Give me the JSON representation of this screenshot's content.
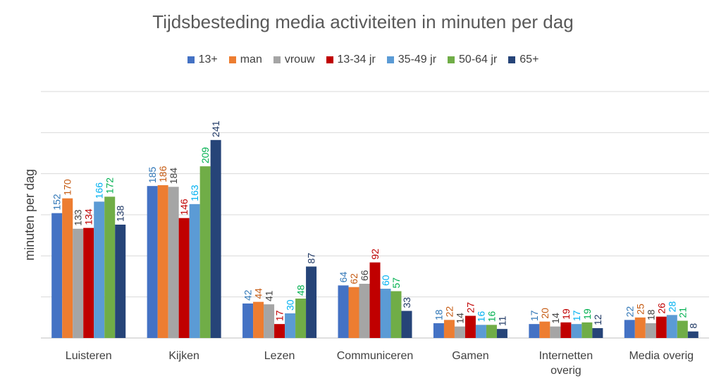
{
  "chart_data": {
    "type": "bar",
    "title": "Tijdsbesteding media activiteiten in minuten per dag",
    "ylabel": "minuten per dag",
    "xlabel": "",
    "ylim": [
      0,
      300
    ],
    "grid": true,
    "legend_position": "top",
    "categories": [
      "Luisteren",
      "Kijken",
      "Lezen",
      "Communiceren",
      "Gamen",
      "Internetten overig",
      "Media overig"
    ],
    "category_lines": [
      [
        "Luisteren"
      ],
      [
        "Kijken"
      ],
      [
        "Lezen"
      ],
      [
        "Communiceren"
      ],
      [
        "Gamen"
      ],
      [
        "Internetten",
        "overig"
      ],
      [
        "Media overig"
      ]
    ],
    "series": [
      {
        "name": "13+",
        "color": "#4472C4",
        "label_color": "#2E75B6",
        "values": [
          152,
          185,
          42,
          64,
          18,
          17,
          22
        ]
      },
      {
        "name": "man",
        "color": "#ED7D31",
        "label_color": "#C55A11",
        "values": [
          170,
          186,
          44,
          62,
          22,
          20,
          25
        ]
      },
      {
        "name": "vrouw",
        "color": "#A5A5A5",
        "label_color": "#404040",
        "values": [
          133,
          184,
          41,
          66,
          14,
          14,
          18
        ]
      },
      {
        "name": "13-34 jr",
        "color": "#C00000",
        "label_color": "#C00000",
        "values": [
          134,
          146,
          17,
          92,
          27,
          19,
          26
        ]
      },
      {
        "name": "35-49 jr",
        "color": "#5B9BD5",
        "label_color": "#00B0F0",
        "values": [
          166,
          163,
          30,
          60,
          16,
          17,
          28
        ]
      },
      {
        "name": "50-64 jr",
        "color": "#70AD47",
        "label_color": "#00B050",
        "values": [
          172,
          209,
          48,
          57,
          16,
          19,
          21
        ]
      },
      {
        "name": "65+",
        "color": "#264478",
        "label_color": "#1F3864",
        "values": [
          138,
          241,
          87,
          33,
          11,
          12,
          8
        ]
      }
    ]
  }
}
